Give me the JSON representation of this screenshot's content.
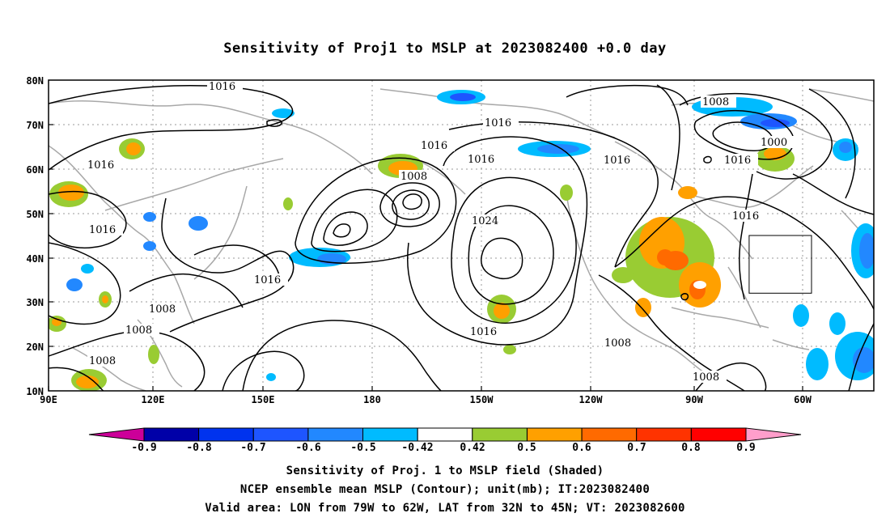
{
  "title": "Sensitivity of Proj1 to MSLP at 2023082400 +0.0 day",
  "map": {
    "lon_labels": [
      "90E",
      "120E",
      "150E",
      "180",
      "150W",
      "120W",
      "90W",
      "60W"
    ],
    "lat_labels": [
      "80N",
      "70N",
      "60N",
      "50N",
      "40N",
      "30N",
      "20N",
      "10N"
    ],
    "contour_labels": [
      "1016",
      "1016",
      "1016",
      "1016",
      "1016",
      "1016",
      "1016",
      "1016",
      "1016",
      "1016",
      "1008",
      "1008",
      "1008",
      "1008",
      "1008",
      "1008",
      "1008",
      "1000",
      "1024",
      "1016"
    ],
    "valid_box": {
      "lon_min": -79,
      "lon_max": -62,
      "lat_min": 32,
      "lat_max": 45
    }
  },
  "colorbar": {
    "labels": [
      "-0.9",
      "-0.8",
      "-0.7",
      "-0.6",
      "-0.5",
      "-0.42",
      "0.42",
      "0.5",
      "0.6",
      "0.7",
      "0.8",
      "0.9"
    ],
    "colors": [
      "#0000a8",
      "#0033ee",
      "#1e55ff",
      "#2288ff",
      "#00bbff",
      "#ffffff",
      "#99cc33",
      "#ffa000",
      "#ff6a00",
      "#ff3300",
      "#ff0000"
    ],
    "low_arrow_color": "#cc0099",
    "high_arrow_color": "#ff9ecb"
  },
  "footer": {
    "line1": "Sensitivity of Proj. 1 to MSLP field (Shaded)",
    "line2": "NCEP ensemble mean MSLP (Contour); unit(mb); IT:2023082400",
    "line3": "Valid area: LON from 79W to 62W, LAT from 32N to 45N; VT: 2023082600"
  }
}
